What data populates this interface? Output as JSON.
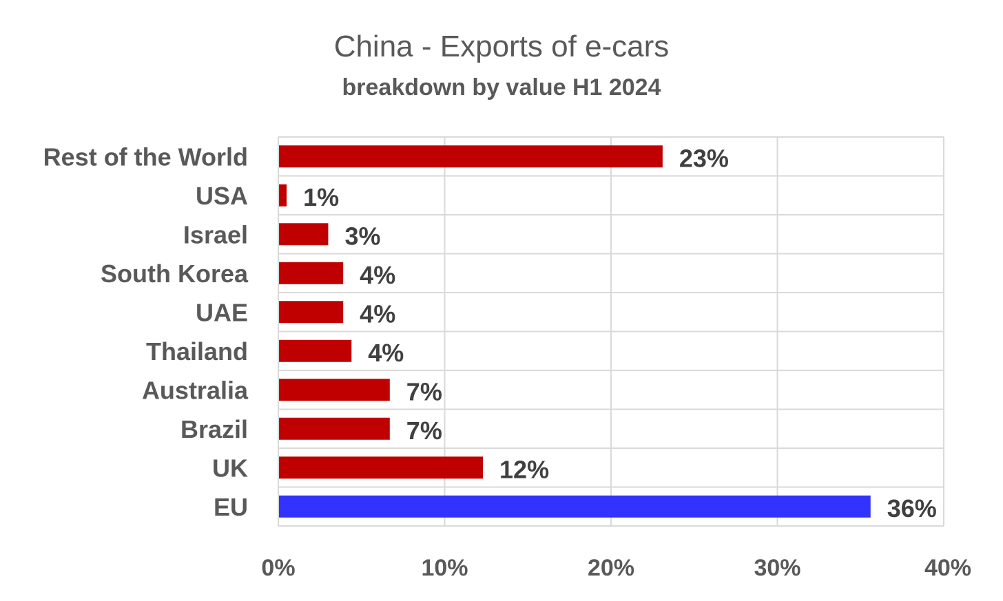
{
  "chart_data": {
    "type": "bar",
    "orientation": "horizontal",
    "title": "China - Exports of e-cars",
    "subtitle": "breakdown by value H1 2024",
    "categories": [
      "Rest of the World",
      "USA",
      "Israel",
      "South Korea",
      "UAE",
      "Thailand",
      "Australia",
      "Brazil",
      "UK",
      "EU"
    ],
    "values": [
      23.1,
      0.5,
      3.0,
      3.9,
      3.9,
      4.4,
      6.7,
      6.7,
      12.3,
      35.6
    ],
    "data_labels": [
      "23%",
      "1%",
      "3%",
      "4%",
      "4%",
      "4%",
      "7%",
      "7%",
      "12%",
      "36%"
    ],
    "bar_colors": [
      "#c00000",
      "#c00000",
      "#c00000",
      "#c00000",
      "#c00000",
      "#c00000",
      "#c00000",
      "#c00000",
      "#c00000",
      "#3333ff"
    ],
    "xlim": [
      0,
      40
    ],
    "x_ticks": [
      0,
      10,
      20,
      30,
      40
    ],
    "x_tick_labels": [
      "0%",
      "10%",
      "20%",
      "30%",
      "40%"
    ],
    "xlabel": "",
    "ylabel": "",
    "grid": true,
    "legend": "none"
  }
}
